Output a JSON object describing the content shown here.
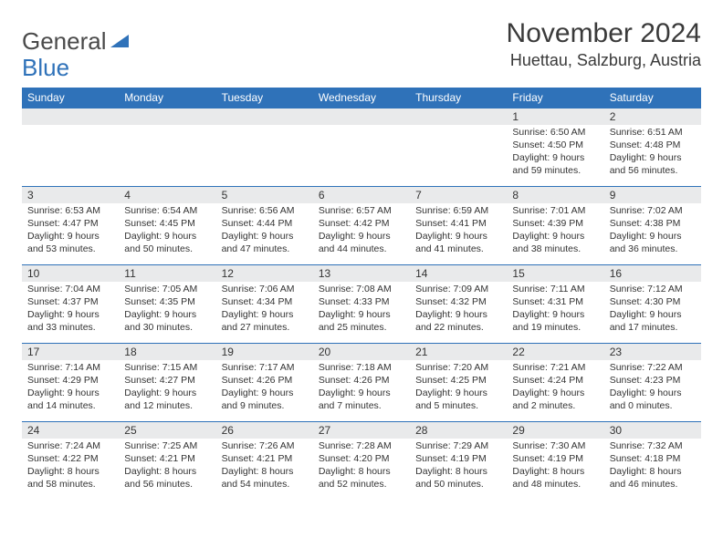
{
  "logo": {
    "part1": "General",
    "part2": "Blue"
  },
  "title": {
    "month": "November 2024",
    "location": "Huettau, Salzburg, Austria"
  },
  "colors": {
    "header_bg": "#2f72b9",
    "header_text": "#ffffff",
    "daynum_bg": "#e9eaeb",
    "border": "#2f72b9",
    "text": "#333333",
    "background": "#ffffff"
  },
  "daysOfWeek": [
    "Sunday",
    "Monday",
    "Tuesday",
    "Wednesday",
    "Thursday",
    "Friday",
    "Saturday"
  ],
  "firstDayOffset": 5,
  "daysInMonth": 30,
  "days": {
    "1": {
      "sunrise": "6:50 AM",
      "sunset": "4:50 PM",
      "dl_h": 9,
      "dl_m": 59
    },
    "2": {
      "sunrise": "6:51 AM",
      "sunset": "4:48 PM",
      "dl_h": 9,
      "dl_m": 56
    },
    "3": {
      "sunrise": "6:53 AM",
      "sunset": "4:47 PM",
      "dl_h": 9,
      "dl_m": 53
    },
    "4": {
      "sunrise": "6:54 AM",
      "sunset": "4:45 PM",
      "dl_h": 9,
      "dl_m": 50
    },
    "5": {
      "sunrise": "6:56 AM",
      "sunset": "4:44 PM",
      "dl_h": 9,
      "dl_m": 47
    },
    "6": {
      "sunrise": "6:57 AM",
      "sunset": "4:42 PM",
      "dl_h": 9,
      "dl_m": 44
    },
    "7": {
      "sunrise": "6:59 AM",
      "sunset": "4:41 PM",
      "dl_h": 9,
      "dl_m": 41
    },
    "8": {
      "sunrise": "7:01 AM",
      "sunset": "4:39 PM",
      "dl_h": 9,
      "dl_m": 38
    },
    "9": {
      "sunrise": "7:02 AM",
      "sunset": "4:38 PM",
      "dl_h": 9,
      "dl_m": 36
    },
    "10": {
      "sunrise": "7:04 AM",
      "sunset": "4:37 PM",
      "dl_h": 9,
      "dl_m": 33
    },
    "11": {
      "sunrise": "7:05 AM",
      "sunset": "4:35 PM",
      "dl_h": 9,
      "dl_m": 30
    },
    "12": {
      "sunrise": "7:06 AM",
      "sunset": "4:34 PM",
      "dl_h": 9,
      "dl_m": 27
    },
    "13": {
      "sunrise": "7:08 AM",
      "sunset": "4:33 PM",
      "dl_h": 9,
      "dl_m": 25
    },
    "14": {
      "sunrise": "7:09 AM",
      "sunset": "4:32 PM",
      "dl_h": 9,
      "dl_m": 22
    },
    "15": {
      "sunrise": "7:11 AM",
      "sunset": "4:31 PM",
      "dl_h": 9,
      "dl_m": 19
    },
    "16": {
      "sunrise": "7:12 AM",
      "sunset": "4:30 PM",
      "dl_h": 9,
      "dl_m": 17
    },
    "17": {
      "sunrise": "7:14 AM",
      "sunset": "4:29 PM",
      "dl_h": 9,
      "dl_m": 14
    },
    "18": {
      "sunrise": "7:15 AM",
      "sunset": "4:27 PM",
      "dl_h": 9,
      "dl_m": 12
    },
    "19": {
      "sunrise": "7:17 AM",
      "sunset": "4:26 PM",
      "dl_h": 9,
      "dl_m": 9
    },
    "20": {
      "sunrise": "7:18 AM",
      "sunset": "4:26 PM",
      "dl_h": 9,
      "dl_m": 7
    },
    "21": {
      "sunrise": "7:20 AM",
      "sunset": "4:25 PM",
      "dl_h": 9,
      "dl_m": 5
    },
    "22": {
      "sunrise": "7:21 AM",
      "sunset": "4:24 PM",
      "dl_h": 9,
      "dl_m": 2
    },
    "23": {
      "sunrise": "7:22 AM",
      "sunset": "4:23 PM",
      "dl_h": 9,
      "dl_m": 0
    },
    "24": {
      "sunrise": "7:24 AM",
      "sunset": "4:22 PM",
      "dl_h": 8,
      "dl_m": 58
    },
    "25": {
      "sunrise": "7:25 AM",
      "sunset": "4:21 PM",
      "dl_h": 8,
      "dl_m": 56
    },
    "26": {
      "sunrise": "7:26 AM",
      "sunset": "4:21 PM",
      "dl_h": 8,
      "dl_m": 54
    },
    "27": {
      "sunrise": "7:28 AM",
      "sunset": "4:20 PM",
      "dl_h": 8,
      "dl_m": 52
    },
    "28": {
      "sunrise": "7:29 AM",
      "sunset": "4:19 PM",
      "dl_h": 8,
      "dl_m": 50
    },
    "29": {
      "sunrise": "7:30 AM",
      "sunset": "4:19 PM",
      "dl_h": 8,
      "dl_m": 48
    },
    "30": {
      "sunrise": "7:32 AM",
      "sunset": "4:18 PM",
      "dl_h": 8,
      "dl_m": 46
    }
  },
  "labels": {
    "sunrise": "Sunrise:",
    "sunset": "Sunset:",
    "daylight_prefix": "Daylight:",
    "hours_word": "hours",
    "and_word": "and",
    "minutes_word": "minutes."
  }
}
